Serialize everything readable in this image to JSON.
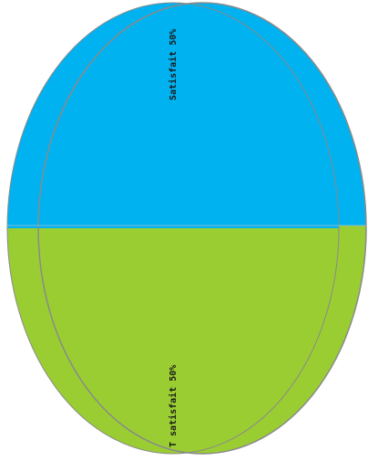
{
  "chart_data": {
    "type": "pie",
    "categories": [
      "Satisfait",
      "T satisfait"
    ],
    "values": [
      50,
      50
    ],
    "data_labels": [
      "Satisfait 50%",
      "T satisfait 50%"
    ],
    "colors": [
      "#00b2f0",
      "#9acd32"
    ],
    "three_d": true,
    "rotated_labels": true,
    "title": "",
    "legend": "none"
  }
}
